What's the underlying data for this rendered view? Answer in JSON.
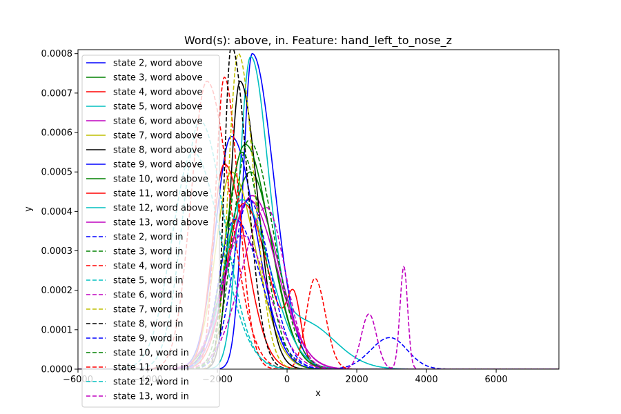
{
  "chart_data": {
    "type": "line",
    "title": "Word(s): above, in. Feature: hand_left_to_nose_z",
    "xlabel": "x",
    "ylabel": "y",
    "xlim": [
      -6000,
      7800
    ],
    "ylim": [
      0,
      0.00081
    ],
    "xticks": [
      -6000,
      -4000,
      -2000,
      0,
      2000,
      4000,
      6000
    ],
    "xtick_labels": [
      "−6000",
      "−4000",
      "−2000",
      "0",
      "2000",
      "4000",
      "6000"
    ],
    "yticks": [
      0,
      0.0001,
      0.0002,
      0.0003,
      0.0004,
      0.0005,
      0.0006,
      0.0007,
      0.0008
    ],
    "ytick_labels": [
      "0.0000",
      "0.0001",
      "0.0002",
      "0.0003",
      "0.0004",
      "0.0005",
      "0.0006",
      "0.0007",
      "0.0008"
    ],
    "grid": false,
    "legend_position": "upper-left",
    "series": [
      {
        "name": "state 2, word above",
        "color": "#0000ff",
        "dash": "solid",
        "components": [
          {
            "mu": -1000,
            "sl": 260,
            "sr": 620,
            "h": 0.0008
          }
        ]
      },
      {
        "name": "state 3, word above",
        "color": "#008000",
        "dash": "solid",
        "components": [
          {
            "mu": -1050,
            "sl": 650,
            "sr": 650,
            "h": 0.0005
          }
        ]
      },
      {
        "name": "state 4, word above",
        "color": "#ff0000",
        "dash": "solid",
        "components": [
          {
            "mu": -1250,
            "sl": 500,
            "sr": 700,
            "h": 0.00042
          },
          {
            "mu": 200,
            "sl": 200,
            "sr": 200,
            "h": 0.00015
          }
        ]
      },
      {
        "name": "state 5, word above",
        "color": "#00bfbf",
        "dash": "solid",
        "components": [
          {
            "mu": -1050,
            "sl": 320,
            "sr": 500,
            "h": 0.00078
          },
          {
            "mu": 450,
            "sl": 700,
            "sr": 900,
            "h": 0.00012
          }
        ]
      },
      {
        "name": "state 6, word above",
        "color": "#bf00bf",
        "dash": "solid",
        "components": [
          {
            "mu": -1000,
            "sl": 700,
            "sr": 750,
            "h": 0.00044
          }
        ]
      },
      {
        "name": "state 7, word above",
        "color": "#bfbf00",
        "dash": "solid",
        "components": [
          {
            "mu": -1600,
            "sl": 450,
            "sr": 700,
            "h": 0.0005
          }
        ]
      },
      {
        "name": "state 8, word above",
        "color": "#000000",
        "dash": "solid",
        "components": [
          {
            "mu": -1350,
            "sl": 280,
            "sr": 500,
            "h": 0.00073
          }
        ]
      },
      {
        "name": "state 9, word above",
        "color": "#0000ff",
        "dash": "solid",
        "components": [
          {
            "mu": -1600,
            "sl": 450,
            "sr": 700,
            "h": 0.00059
          }
        ]
      },
      {
        "name": "state 10, word above",
        "color": "#008000",
        "dash": "solid",
        "components": [
          {
            "mu": -1200,
            "sl": 550,
            "sr": 700,
            "h": 0.00057
          }
        ]
      },
      {
        "name": "state 11, word above",
        "color": "#ff0000",
        "dash": "solid",
        "components": [
          {
            "mu": -1800,
            "sl": 350,
            "sr": 600,
            "h": 0.00052
          }
        ]
      },
      {
        "name": "state 12, word above",
        "color": "#00bfbf",
        "dash": "solid",
        "components": [
          {
            "mu": -1300,
            "sl": 500,
            "sr": 800,
            "h": 0.00043
          }
        ]
      },
      {
        "name": "state 13, word above",
        "color": "#bf00bf",
        "dash": "solid",
        "components": [
          {
            "mu": -1100,
            "sl": 600,
            "sr": 800,
            "h": 0.00043
          }
        ]
      },
      {
        "name": "state 2, word in",
        "color": "#0000ff",
        "dash": "dashed",
        "components": [
          {
            "mu": -1100,
            "sl": 450,
            "sr": 600,
            "h": 0.00043
          },
          {
            "mu": 2950,
            "sl": 550,
            "sr": 500,
            "h": 8e-05
          }
        ]
      },
      {
        "name": "state 3, word in",
        "color": "#008000",
        "dash": "dashed",
        "components": [
          {
            "mu": -1100,
            "sl": 450,
            "sr": 700,
            "h": 0.00058
          }
        ]
      },
      {
        "name": "state 4, word in",
        "color": "#ff0000",
        "dash": "dashed",
        "components": [
          {
            "mu": -1800,
            "sl": 250,
            "sr": 400,
            "h": 0.00074
          },
          {
            "mu": 800,
            "sl": 250,
            "sr": 300,
            "h": 0.00023
          }
        ]
      },
      {
        "name": "state 5, word in",
        "color": "#00bfbf",
        "dash": "dashed",
        "components": [
          {
            "mu": -2500,
            "sl": 500,
            "sr": 700,
            "h": 0.00063
          }
        ]
      },
      {
        "name": "state 6, word in",
        "color": "#bf00bf",
        "dash": "dashed",
        "components": [
          {
            "mu": -600,
            "sl": 700,
            "sr": 550,
            "h": 0.00041
          },
          {
            "mu": 2350,
            "sl": 220,
            "sr": 220,
            "h": 0.00014
          },
          {
            "mu": 3350,
            "sl": 110,
            "sr": 110,
            "h": 0.00026
          }
        ]
      },
      {
        "name": "state 7, word in",
        "color": "#bfbf00",
        "dash": "dashed",
        "components": [
          {
            "mu": -1400,
            "sl": 280,
            "sr": 450,
            "h": 0.0008
          }
        ]
      },
      {
        "name": "state 8, word in",
        "color": "#000000",
        "dash": "dashed",
        "components": [
          {
            "mu": -1600,
            "sl": 200,
            "sr": 450,
            "h": 0.00082
          }
        ]
      },
      {
        "name": "state 9, word in",
        "color": "#0000ff",
        "dash": "dashed",
        "components": [
          {
            "mu": -1500,
            "sl": 450,
            "sr": 750,
            "h": 0.00038
          }
        ]
      },
      {
        "name": "state 10, word in",
        "color": "#008000",
        "dash": "dashed",
        "components": [
          {
            "mu": -1300,
            "sl": 400,
            "sr": 600,
            "h": 0.00055
          }
        ]
      },
      {
        "name": "state 11, word in",
        "color": "#ff0000",
        "dash": "dashed",
        "components": [
          {
            "mu": -2300,
            "sl": 450,
            "sr": 650,
            "h": 0.00073
          }
        ]
      },
      {
        "name": "state 12, word in",
        "color": "#00bfbf",
        "dash": "dashed",
        "components": [
          {
            "mu": -2700,
            "sl": 600,
            "sr": 800,
            "h": 0.00055
          }
        ]
      },
      {
        "name": "state 13, word in",
        "color": "#bf00bf",
        "dash": "dashed",
        "components": [
          {
            "mu": -1300,
            "sl": 600,
            "sr": 750,
            "h": 0.00034
          }
        ]
      }
    ]
  }
}
